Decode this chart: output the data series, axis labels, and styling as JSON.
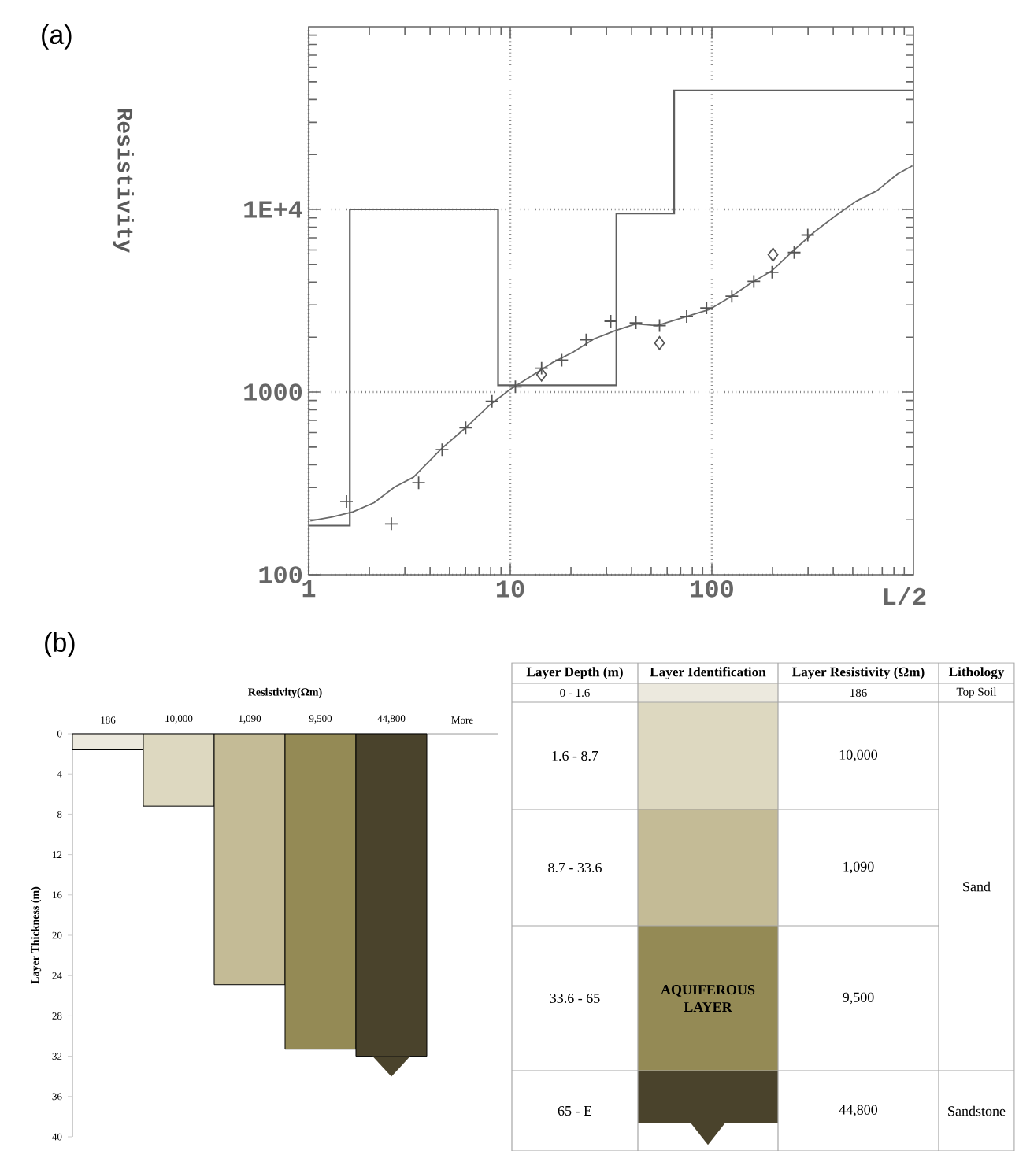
{
  "chart_data": [
    {
      "type": "line",
      "annotations": [
        "(a)"
      ],
      "xlabel": "L/2",
      "ylabel": "Resistivity",
      "log": "xy",
      "grid": true,
      "xlim": [
        1,
        1000
      ],
      "ylim": [
        100,
        100000
      ],
      "xticks": [
        1,
        10,
        100
      ],
      "yticks": [
        100,
        1000,
        {
          "value": 10000,
          "label": "1E+4"
        }
      ],
      "series": [
        {
          "type": "step",
          "color": "#5f5f5f",
          "x": [
            1,
            1.6,
            8.7,
            33.6,
            65,
            1000
          ],
          "values": [
            186,
            10000,
            1090,
            9500,
            44800,
            44800
          ]
        },
        {
          "type": "line",
          "color": "#6a6a6a",
          "x": [
            1.02,
            1.31,
            1.66,
            2.11,
            2.68,
            3.31,
            3.84,
            4.59,
            6.01,
            7.87,
            10,
            12.7,
            16.1,
            20.5,
            26.1,
            33,
            42,
            53.3,
            67.8,
            97,
            123,
            157,
            199,
            253,
            321,
            407,
            518,
            658,
            836,
            988
          ],
          "values": [
            197,
            207,
            221,
            248,
            303,
            342,
            404,
            494,
            638,
            846,
            1035,
            1223,
            1445,
            1655,
            1959,
            2165,
            2362,
            2312,
            2508,
            2830,
            3304,
            3962,
            4627,
            5929,
            7498,
            9165,
            11060,
            12650,
            15670,
            17340
          ]
        },
        {
          "type": "scatter",
          "marker": "cross",
          "color": "#555555",
          "x": [
            1.54,
            2.57,
            3.51,
            4.59,
            6.01,
            8.11,
            10.6,
            14.3,
            18,
            23.8,
            31.5,
            42,
            55,
            75,
            94.1,
            125.6,
            161.5,
            199,
            256,
            299
          ],
          "values": [
            252,
            190,
            319,
            484,
            638,
            891,
            1069,
            1352,
            1496,
            1932,
            2443,
            2393,
            2313,
            2594,
            2891,
            3350,
            4036,
            4528,
            5808,
            7245
          ]
        },
        {
          "type": "scatter",
          "marker": "diamond",
          "color": "#555555",
          "x": [
            14.3,
            55,
            201
          ],
          "values": [
            1247,
            1854,
            5650
          ]
        }
      ]
    },
    {
      "type": "bar",
      "annotations": [
        "(b)"
      ],
      "xlabel": "Resistivity(Ωm)",
      "ylabel": "Layer Thickness (m)",
      "categories": [
        "186",
        "10,000",
        "1,090",
        "9,500",
        "44,800",
        "More"
      ],
      "values": [
        1.6,
        7.2,
        24.9,
        31.3,
        32,
        null
      ],
      "colors": [
        "#ece9de",
        "#ddd8c0",
        "#c4bb96",
        "#948a55",
        "#4a432c",
        "#ffffff"
      ],
      "ylim": [
        40,
        0
      ],
      "yticks": [
        0,
        4,
        8,
        12,
        16,
        20,
        24,
        28,
        32,
        36,
        40
      ]
    },
    {
      "type": "other",
      "categories": [
        "Layer Depth (m)",
        "Layer Identification",
        "Layer Resistivity (Ωm)",
        "Lithology"
      ],
      "y_categories": [
        "0 - 1.6",
        "1.6 - 8.7",
        "8.7 - 33.6",
        "33.6 - 65",
        "65 - E"
      ],
      "cell_labels": [
        [
          null,
          "186",
          "Top Soil"
        ],
        [
          null,
          "10,000",
          "Sand"
        ],
        [
          null,
          "1,090",
          null
        ],
        [
          "AQUIFEROUS LAYER",
          "9,500",
          null
        ],
        [
          null,
          "44,800",
          "Sandstone"
        ]
      ],
      "colors": [
        "#ece9de",
        "#ddd8c0",
        "#c4bb96",
        "#948a55",
        "#4a432c"
      ]
    }
  ]
}
